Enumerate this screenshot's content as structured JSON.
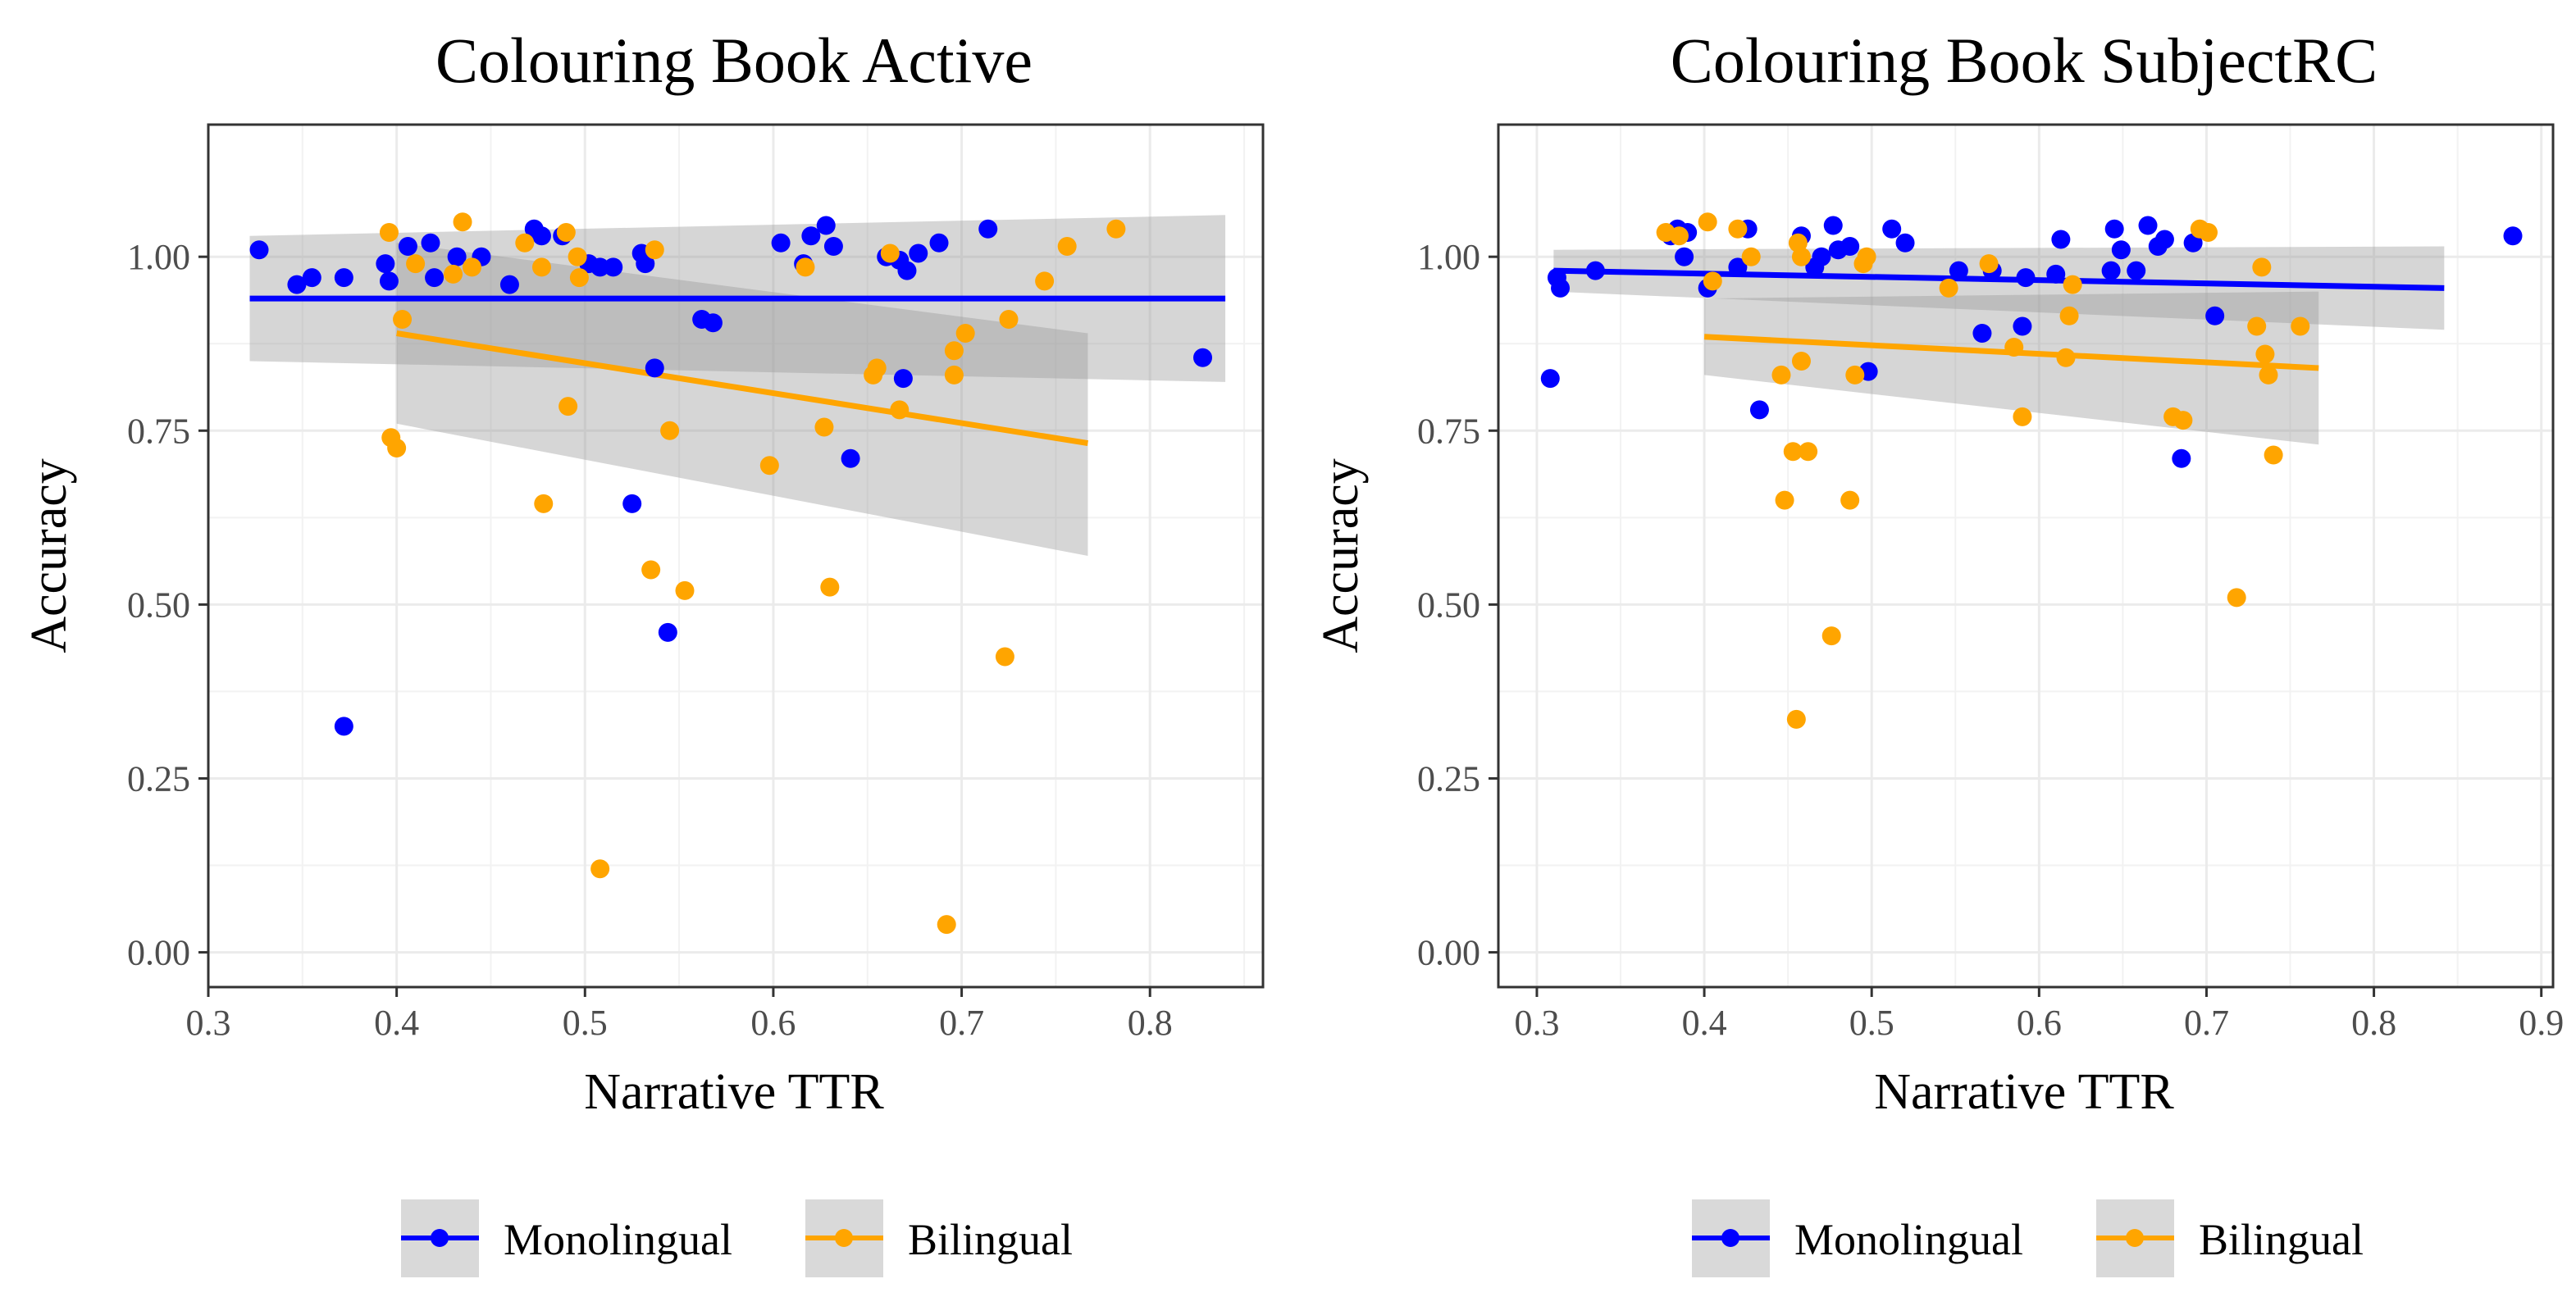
{
  "chart_data": [
    {
      "type": "scatter",
      "title": "Colouring Book Active",
      "xlabel": "Narrative TTR",
      "ylabel": "Accuracy",
      "xlim": [
        0.3,
        0.86
      ],
      "ylim": [
        -0.05,
        1.19
      ],
      "x_ticks": [
        0.3,
        0.4,
        0.5,
        0.6,
        0.7,
        0.8
      ],
      "x_tick_labels": [
        "0.3",
        "0.4",
        "0.5",
        "0.6",
        "0.7",
        "0.8"
      ],
      "y_ticks": [
        0.0,
        0.25,
        0.5,
        0.75,
        1.0
      ],
      "y_tick_labels": [
        "0.00",
        "0.25",
        "0.50",
        "0.75",
        "1.00"
      ],
      "legend": {
        "position": "bottom",
        "entries": [
          "Monolingual",
          "Bilingual"
        ]
      },
      "series": [
        {
          "name": "Monolingual",
          "color": "#0000ff",
          "points": [
            [
              0.327,
              1.01
            ],
            [
              0.347,
              0.96
            ],
            [
              0.355,
              0.97
            ],
            [
              0.372,
              0.97
            ],
            [
              0.372,
              0.325
            ],
            [
              0.394,
              0.99
            ],
            [
              0.396,
              0.965
            ],
            [
              0.406,
              1.015
            ],
            [
              0.418,
              1.02
            ],
            [
              0.42,
              0.97
            ],
            [
              0.432,
              1.0
            ],
            [
              0.445,
              1.0
            ],
            [
              0.46,
              0.96
            ],
            [
              0.473,
              1.04
            ],
            [
              0.477,
              1.03
            ],
            [
              0.488,
              1.03
            ],
            [
              0.502,
              0.99
            ],
            [
              0.508,
              0.985
            ],
            [
              0.515,
              0.985
            ],
            [
              0.525,
              0.645
            ],
            [
              0.53,
              1.005
            ],
            [
              0.532,
              0.99
            ],
            [
              0.537,
              0.84
            ],
            [
              0.544,
              0.46
            ],
            [
              0.562,
              0.91
            ],
            [
              0.568,
              0.905
            ],
            [
              0.604,
              1.02
            ],
            [
              0.616,
              0.99
            ],
            [
              0.62,
              1.03
            ],
            [
              0.628,
              1.045
            ],
            [
              0.632,
              1.015
            ],
            [
              0.641,
              0.71
            ],
            [
              0.66,
              1.0
            ],
            [
              0.667,
              0.995
            ],
            [
              0.669,
              0.825
            ],
            [
              0.671,
              0.98
            ],
            [
              0.677,
              1.005
            ],
            [
              0.688,
              1.02
            ],
            [
              0.714,
              1.04
            ],
            [
              0.828,
              0.855
            ]
          ],
          "trend": {
            "x": [
              0.322,
              0.84
            ],
            "y": [
              0.94,
              0.94
            ],
            "ci_lower": [
              0.85,
              0.82
            ],
            "ci_upper": [
              1.03,
              1.06
            ]
          }
        },
        {
          "name": "Bilingual",
          "color": "#ffa500",
          "points": [
            [
              0.396,
              1.035
            ],
            [
              0.397,
              0.74
            ],
            [
              0.4,
              0.725
            ],
            [
              0.403,
              0.91
            ],
            [
              0.41,
              0.99
            ],
            [
              0.43,
              0.975
            ],
            [
              0.435,
              1.05
            ],
            [
              0.44,
              0.985
            ],
            [
              0.468,
              1.02
            ],
            [
              0.477,
              0.985
            ],
            [
              0.478,
              0.645
            ],
            [
              0.49,
              1.035
            ],
            [
              0.491,
              0.785
            ],
            [
              0.496,
              1.0
            ],
            [
              0.497,
              0.97
            ],
            [
              0.508,
              0.12
            ],
            [
              0.535,
              0.55
            ],
            [
              0.537,
              1.01
            ],
            [
              0.545,
              0.75
            ],
            [
              0.553,
              0.52
            ],
            [
              0.598,
              0.7
            ],
            [
              0.617,
              0.985
            ],
            [
              0.627,
              0.755
            ],
            [
              0.63,
              0.525
            ],
            [
              0.653,
              0.83
            ],
            [
              0.655,
              0.84
            ],
            [
              0.662,
              1.005
            ],
            [
              0.667,
              0.78
            ],
            [
              0.692,
              0.04
            ],
            [
              0.696,
              0.865
            ],
            [
              0.696,
              0.83
            ],
            [
              0.702,
              0.89
            ],
            [
              0.723,
              0.425
            ],
            [
              0.725,
              0.91
            ],
            [
              0.744,
              0.965
            ],
            [
              0.756,
              1.015
            ],
            [
              0.782,
              1.04
            ]
          ],
          "trend": {
            "x": [
              0.4,
              0.767
            ],
            "y": [
              0.89,
              0.732
            ],
            "ci_lower": [
              0.76,
              0.57
            ],
            "ci_upper": [
              1.02,
              0.89
            ]
          }
        }
      ]
    },
    {
      "type": "scatter",
      "title": "Colouring Book SubjectRC",
      "xlabel": "Narrative TTR",
      "ylabel": "Accuracy",
      "xlim": [
        0.277,
        0.907
      ],
      "ylim": [
        -0.05,
        1.19
      ],
      "x_ticks": [
        0.3,
        0.4,
        0.5,
        0.6,
        0.7,
        0.8,
        0.9
      ],
      "x_tick_labels": [
        "0.3",
        "0.4",
        "0.5",
        "0.6",
        "0.7",
        "0.8",
        "0.9"
      ],
      "y_ticks": [
        0.0,
        0.25,
        0.5,
        0.75,
        1.0
      ],
      "y_tick_labels": [
        "0.00",
        "0.25",
        "0.50",
        "0.75",
        "1.00"
      ],
      "legend": {
        "position": "bottom",
        "entries": [
          "Monolingual",
          "Bilingual"
        ]
      },
      "series": [
        {
          "name": "Monolingual",
          "color": "#0000ff",
          "points": [
            [
              0.308,
              0.825
            ],
            [
              0.312,
              0.97
            ],
            [
              0.314,
              0.955
            ],
            [
              0.335,
              0.98
            ],
            [
              0.38,
              1.03
            ],
            [
              0.384,
              1.04
            ],
            [
              0.388,
              1.0
            ],
            [
              0.39,
              1.035
            ],
            [
              0.402,
              0.955
            ],
            [
              0.42,
              0.985
            ],
            [
              0.426,
              1.04
            ],
            [
              0.433,
              0.78
            ],
            [
              0.458,
              1.03
            ],
            [
              0.466,
              0.985
            ],
            [
              0.47,
              1.0
            ],
            [
              0.477,
              1.045
            ],
            [
              0.48,
              1.01
            ],
            [
              0.487,
              1.015
            ],
            [
              0.498,
              0.835
            ],
            [
              0.512,
              1.04
            ],
            [
              0.52,
              1.02
            ],
            [
              0.552,
              0.98
            ],
            [
              0.566,
              0.89
            ],
            [
              0.572,
              0.98
            ],
            [
              0.59,
              0.9
            ],
            [
              0.592,
              0.97
            ],
            [
              0.61,
              0.975
            ],
            [
              0.613,
              1.025
            ],
            [
              0.643,
              0.98
            ],
            [
              0.645,
              1.04
            ],
            [
              0.649,
              1.01
            ],
            [
              0.658,
              0.98
            ],
            [
              0.665,
              1.045
            ],
            [
              0.671,
              1.015
            ],
            [
              0.675,
              1.025
            ],
            [
              0.685,
              0.71
            ],
            [
              0.692,
              1.02
            ],
            [
              0.705,
              0.915
            ],
            [
              0.883,
              1.03
            ]
          ],
          "trend": {
            "x": [
              0.31,
              0.842
            ],
            "y": [
              0.98,
              0.955
            ],
            "ci_lower": [
              0.95,
              0.895
            ],
            "ci_upper": [
              1.01,
              1.015
            ]
          }
        },
        {
          "name": "Bilingual",
          "color": "#ffa500",
          "points": [
            [
              0.377,
              1.035
            ],
            [
              0.385,
              1.03
            ],
            [
              0.402,
              1.05
            ],
            [
              0.405,
              0.965
            ],
            [
              0.42,
              1.04
            ],
            [
              0.428,
              1.0
            ],
            [
              0.446,
              0.83
            ],
            [
              0.448,
              0.65
            ],
            [
              0.453,
              0.72
            ],
            [
              0.455,
              0.335
            ],
            [
              0.456,
              1.02
            ],
            [
              0.458,
              1.0
            ],
            [
              0.458,
              0.85
            ],
            [
              0.462,
              0.72
            ],
            [
              0.476,
              0.455
            ],
            [
              0.487,
              0.65
            ],
            [
              0.49,
              0.83
            ],
            [
              0.495,
              0.99
            ],
            [
              0.497,
              1.0
            ],
            [
              0.546,
              0.955
            ],
            [
              0.57,
              0.99
            ],
            [
              0.585,
              0.87
            ],
            [
              0.59,
              0.77
            ],
            [
              0.618,
              0.915
            ],
            [
              0.62,
              0.96
            ],
            [
              0.616,
              0.855
            ],
            [
              0.68,
              0.77
            ],
            [
              0.686,
              0.765
            ],
            [
              0.696,
              1.04
            ],
            [
              0.701,
              1.035
            ],
            [
              0.718,
              0.51
            ],
            [
              0.73,
              0.9
            ],
            [
              0.733,
              0.985
            ],
            [
              0.735,
              0.86
            ],
            [
              0.737,
              0.83
            ],
            [
              0.74,
              0.715
            ],
            [
              0.756,
              0.9
            ]
          ],
          "trend": {
            "x": [
              0.4,
              0.767
            ],
            "y": [
              0.885,
              0.84
            ],
            "ci_lower": [
              0.83,
              0.73
            ],
            "ci_upper": [
              0.94,
              0.95
            ]
          }
        }
      ]
    }
  ]
}
